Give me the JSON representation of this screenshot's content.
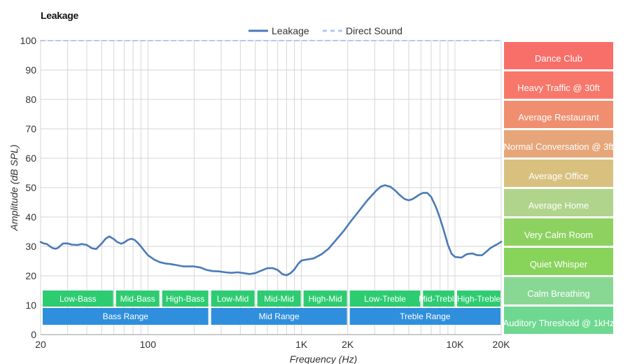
{
  "chart_data": {
    "type": "line",
    "title": "Leakage",
    "xlabel": "Frequency (Hz)",
    "ylabel": "Amplitude (dB SPL)",
    "x_scale": "log",
    "xlim": [
      20,
      20000
    ],
    "ylim": [
      0,
      100
    ],
    "x_ticks": [
      {
        "value": 20,
        "label": "20"
      },
      {
        "value": 100,
        "label": "100"
      },
      {
        "value": 1000,
        "label": "1K"
      },
      {
        "value": 2000,
        "label": "2K"
      },
      {
        "value": 10000,
        "label": "10K"
      },
      {
        "value": 20000,
        "label": "20K"
      }
    ],
    "y_ticks": [
      0,
      10,
      20,
      30,
      40,
      50,
      60,
      70,
      80,
      90,
      100
    ],
    "grid": true,
    "legend_position": "top-center",
    "series": [
      {
        "name": "Leakage",
        "color": "#4a7ab8",
        "style": "solid",
        "x": [
          20,
          21,
          22,
          23,
          24,
          25,
          26,
          27,
          28,
          30,
          32,
          35,
          37,
          40,
          43,
          46,
          50,
          53,
          56,
          60,
          63,
          67,
          70,
          74,
          78,
          82,
          86,
          90,
          95,
          100,
          110,
          120,
          130,
          140,
          155,
          170,
          185,
          200,
          220,
          240,
          265,
          290,
          320,
          350,
          385,
          420,
          460,
          500,
          550,
          600,
          650,
          700,
          750,
          800,
          850,
          900,
          950,
          1000,
          1100,
          1200,
          1350,
          1500,
          1700,
          1900,
          2100,
          2300,
          2500,
          2700,
          2900,
          3100,
          3300,
          3500,
          3800,
          4100,
          4400,
          4700,
          5000,
          5300,
          5600,
          5900,
          6200,
          6600,
          7000,
          7500,
          8000,
          8500,
          9000,
          9500,
          10000,
          11000,
          12000,
          13000,
          14000,
          15000,
          16000,
          17000,
          18000,
          19000,
          20000
        ],
        "y": [
          31.5,
          31,
          30.8,
          30,
          29.4,
          29.2,
          29.5,
          30.3,
          31,
          31,
          30.6,
          30.5,
          30.8,
          30.5,
          29.4,
          29.1,
          31,
          32.6,
          33.4,
          32.5,
          31.5,
          30.9,
          31.3,
          32.2,
          32.6,
          32.2,
          31.2,
          30,
          28.4,
          27,
          25.5,
          24.6,
          24.2,
          24,
          23.6,
          23.2,
          23.2,
          23.2,
          22.8,
          22,
          21.6,
          21.5,
          21.2,
          21,
          21.2,
          20.9,
          20.6,
          20.9,
          21.8,
          22.6,
          22.6,
          22,
          20.6,
          20.2,
          20.9,
          22.2,
          24,
          25.2,
          25.6,
          25.9,
          27.3,
          29.2,
          32.5,
          35.5,
          38.6,
          41.2,
          43.6,
          45.8,
          47.6,
          49.2,
          50.4,
          50.8,
          50.3,
          48.9,
          47.3,
          46.1,
          45.7,
          46.1,
          46.9,
          47.7,
          48.2,
          48.2,
          46.8,
          43.5,
          39.5,
          35,
          30.5,
          27.5,
          26.4,
          26.2,
          27.4,
          27.6,
          27,
          27,
          28.2,
          29.4,
          30.2,
          30.8,
          31.6
        ]
      },
      {
        "name": "Direct Sound",
        "color": "#b3c7f7",
        "style": "dashed",
        "x": [
          20,
          20000
        ],
        "y": [
          100,
          100
        ]
      }
    ],
    "frequency_bands": [
      {
        "label": "Low-Bass",
        "from": 20,
        "to": 60
      },
      {
        "label": "Mid-Bass",
        "from": 60,
        "to": 120
      },
      {
        "label": "High-Bass",
        "from": 120,
        "to": 250
      },
      {
        "label": "Low-Mid",
        "from": 250,
        "to": 500
      },
      {
        "label": "Mid-Mid",
        "from": 500,
        "to": 1000
      },
      {
        "label": "High-Mid",
        "from": 1000,
        "to": 2000
      },
      {
        "label": "Low-Treble",
        "from": 2000,
        "to": 6000
      },
      {
        "label": "Mid-Treble",
        "from": 6000,
        "to": 10000
      },
      {
        "label": "High-Treble",
        "from": 10000,
        "to": 20000
      }
    ],
    "ranges": [
      {
        "label": "Bass Range",
        "from": 20,
        "to": 250
      },
      {
        "label": "Mid Range",
        "from": 250,
        "to": 2000
      },
      {
        "label": "Treble Range",
        "from": 2000,
        "to": 20000
      }
    ],
    "band_color": "#2ecc71",
    "range_color": "#2f8fdd",
    "reference_levels": [
      {
        "label": "Dance Club",
        "color": "#f86f6a"
      },
      {
        "label": "Heavy Traffic @ 30ft",
        "color": "#f7786a"
      },
      {
        "label": "Average Restaurant",
        "color": "#ef8f70"
      },
      {
        "label": "Normal Conversation @ 3ft",
        "color": "#e6a679"
      },
      {
        "label": "Average Office",
        "color": "#d8c07e"
      },
      {
        "label": "Average Home",
        "color": "#b0d48c"
      },
      {
        "label": "Very Calm Room",
        "color": "#8dd260"
      },
      {
        "label": "Quiet Whisper",
        "color": "#88d35a"
      },
      {
        "label": "Calm Breathing",
        "color": "#88d893"
      },
      {
        "label": "Auditory Threshold @ 1kHz",
        "color": "#6ed890"
      }
    ]
  }
}
